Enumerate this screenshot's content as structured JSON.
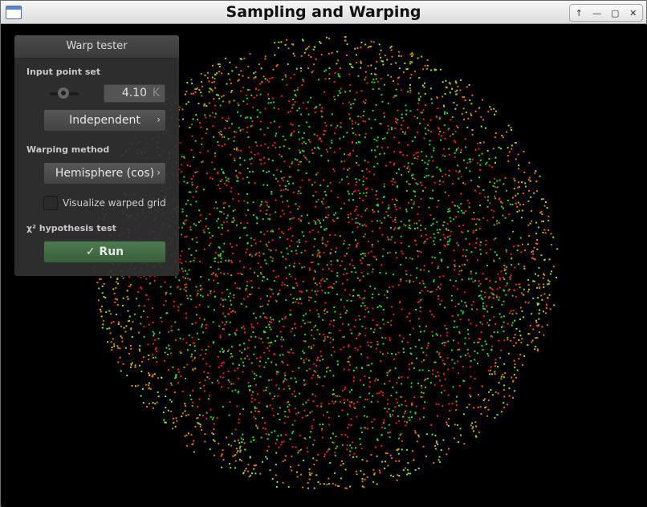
{
  "window": {
    "title": "Sampling and Warping",
    "controls": [
      {
        "name": "help-icon",
        "glyph": "↑"
      },
      {
        "name": "minimize-icon",
        "glyph": "—"
      },
      {
        "name": "maximize-icon",
        "glyph": "▢"
      },
      {
        "name": "close-icon",
        "glyph": "✕"
      }
    ]
  },
  "panel": {
    "title": "Warp tester",
    "input_point_set_label": "Input point set",
    "point_count_value": "4.10",
    "point_count_unit": "K",
    "sampler_label": "Independent",
    "warping_method_label": "Warping method",
    "warping_method_value": "Hemisphere (cos)",
    "visualize_grid_label": "Visualize warped grid",
    "visualize_grid_checked": false,
    "chi2_label": "χ² hypothesis test",
    "run_label": "✓ Run"
  },
  "visualization": {
    "point_colors": [
      "#e8231a",
      "#2fd62a",
      "#f06a14",
      "#8fe02a"
    ],
    "background": "#000000"
  }
}
